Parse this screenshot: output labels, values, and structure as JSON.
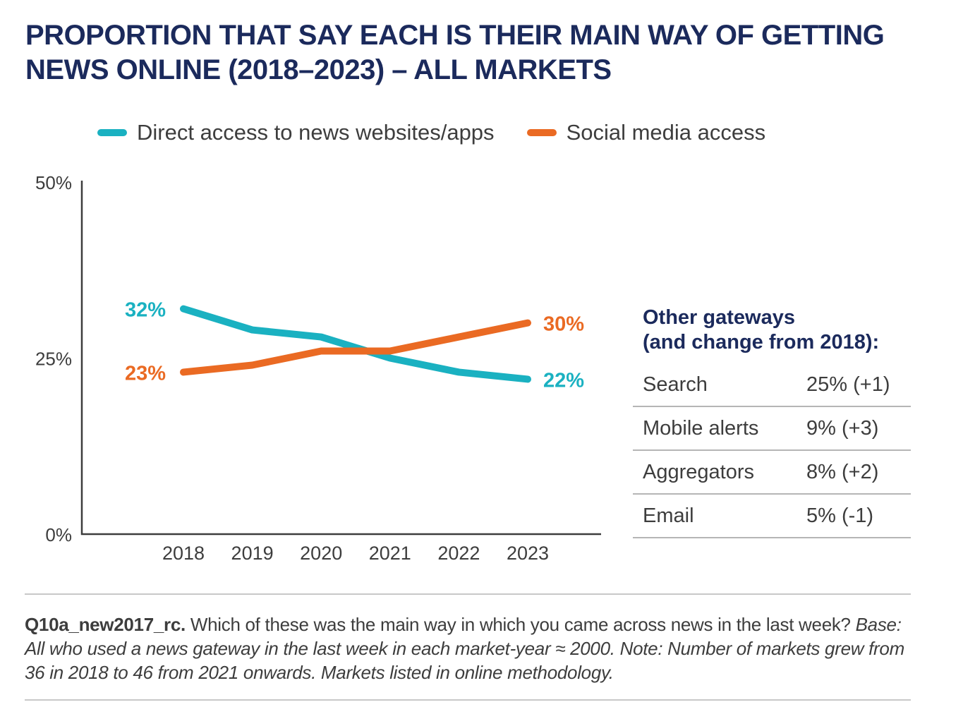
{
  "title": "PROPORTION THAT SAY EACH IS THEIR MAIN WAY OF GETTING NEWS ONLINE (2018–2023) – ALL MARKETS",
  "colors": {
    "direct": "#1ab1c1",
    "social": "#ea6a23",
    "title": "#1b2a5c",
    "text": "#3d3d3d"
  },
  "chart_data": {
    "type": "line",
    "title": "PROPORTION THAT SAY EACH IS THEIR MAIN WAY OF GETTING NEWS ONLINE (2018–2023) – ALL MARKETS",
    "x": [
      "2018",
      "2019",
      "2020",
      "2021",
      "2022",
      "2023"
    ],
    "series": [
      {
        "name": "Direct access to news websites/apps",
        "values": [
          32,
          29,
          28,
          25,
          23,
          22
        ],
        "start_label": "32%",
        "end_label": "22%"
      },
      {
        "name": "Social media access",
        "values": [
          23,
          24,
          26,
          26,
          28,
          30
        ],
        "start_label": "23%",
        "end_label": "30%"
      }
    ],
    "yticks": [
      "0%",
      "25%",
      "50%"
    ],
    "ylim": [
      0,
      50
    ],
    "xlabel": "",
    "ylabel": "",
    "grid": false,
    "legend_position": "top"
  },
  "side_panel": {
    "title_line1": "Other gateways",
    "title_line2": "(and change from 2018):",
    "rows": [
      {
        "name": "Search",
        "value": "25% (+1)"
      },
      {
        "name": "Mobile alerts",
        "value": "9% (+3)"
      },
      {
        "name": "Aggregators",
        "value": "8% (+2)"
      },
      {
        "name": "Email",
        "value": "5% (-1)"
      }
    ]
  },
  "note": {
    "question_id": "Q10a_new2017_rc.",
    "question": " Which of these was the main way in which you came across news in the last week? ",
    "base": "Base: All who used a news gateway in the last week in each market-year ≈ 2000. Note: Number of markets grew from 36 in 2018 to 46 from 2021 onwards. Markets listed in online methodology."
  }
}
